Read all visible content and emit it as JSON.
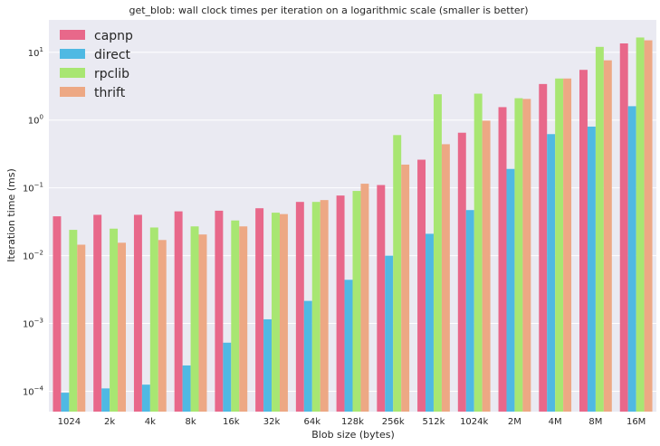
{
  "chart_data": {
    "type": "bar",
    "title": "get_blob: wall clock times per iteration on a logarithmic scale (smaller is better)",
    "xlabel": "Blob size (bytes)",
    "ylabel": "Iteration time (ms)",
    "y_scale": "log",
    "ylim": [
      5e-05,
      30
    ],
    "y_ticks": [
      {
        "value": 0.0001,
        "base": "10",
        "exp": "−4"
      },
      {
        "value": 0.001,
        "base": "10",
        "exp": "−3"
      },
      {
        "value": 0.01,
        "base": "10",
        "exp": "−2"
      },
      {
        "value": 0.1,
        "base": "10",
        "exp": "−1"
      },
      {
        "value": 1,
        "base": "10",
        "exp": "0"
      },
      {
        "value": 10,
        "base": "10",
        "exp": "1"
      }
    ],
    "grid": true,
    "legend_position": "top-left",
    "categories": [
      "1024",
      "2k",
      "4k",
      "8k",
      "16k",
      "32k",
      "64k",
      "128k",
      "256k",
      "512k",
      "1024k",
      "2M",
      "4M",
      "8M",
      "16M"
    ],
    "series": [
      {
        "name": "capnp",
        "color": "#e8688a",
        "values": [
          0.038,
          0.04,
          0.04,
          0.045,
          0.046,
          0.05,
          0.062,
          0.077,
          0.11,
          0.26,
          0.65,
          1.55,
          3.4,
          5.5,
          13.5
        ]
      },
      {
        "name": "direct",
        "color": "#4fb9e3",
        "values": [
          9.5e-05,
          0.00011,
          0.000125,
          0.00024,
          0.00052,
          0.00115,
          0.00215,
          0.0044,
          0.01,
          0.021,
          0.047,
          0.19,
          0.62,
          0.8,
          1.6
        ]
      },
      {
        "name": "rpclib",
        "color": "#a8e672",
        "values": [
          0.024,
          0.025,
          0.026,
          0.027,
          0.033,
          0.043,
          0.062,
          0.09,
          0.6,
          2.4,
          2.45,
          2.1,
          4.1,
          12.0,
          16.5
        ]
      },
      {
        "name": "thrift",
        "color": "#eda884",
        "values": [
          0.0145,
          0.0155,
          0.017,
          0.0205,
          0.027,
          0.041,
          0.066,
          0.115,
          0.22,
          0.44,
          0.98,
          2.05,
          4.1,
          7.6,
          15.0
        ]
      }
    ]
  }
}
